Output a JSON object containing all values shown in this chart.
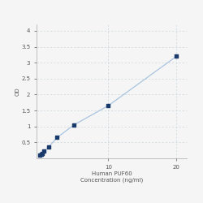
{
  "x_data": [
    0,
    0.156,
    0.312,
    0.625,
    1.25,
    2.5,
    5,
    10,
    20
  ],
  "y_data": [
    0.1,
    0.13,
    0.16,
    0.22,
    0.35,
    0.65,
    1.05,
    1.65,
    3.2
  ],
  "line_color": "#aac4e0",
  "marker_color": "#1a3a6b",
  "marker_size": 12,
  "xlabel_line1": "Human PUF60",
  "xlabel_line2": "Concentration (ng/ml)",
  "ylabel": "OD",
  "xlim": [
    -0.5,
    21.5
  ],
  "ylim": [
    0,
    4.2
  ],
  "yticks": [
    0.5,
    1.0,
    1.5,
    2.0,
    2.5,
    3.0,
    3.5,
    4.0
  ],
  "ytick_labels": [
    "0.5",
    "1",
    "1.5",
    "2",
    "2.5",
    "3",
    "3.5",
    "4"
  ],
  "xticks": [
    10,
    20
  ],
  "xtick_labels": [
    "10",
    "20"
  ],
  "grid_color": "#c8d4dc",
  "background_color": "#f5f5f5",
  "label_fontsize": 5,
  "tick_fontsize": 5
}
